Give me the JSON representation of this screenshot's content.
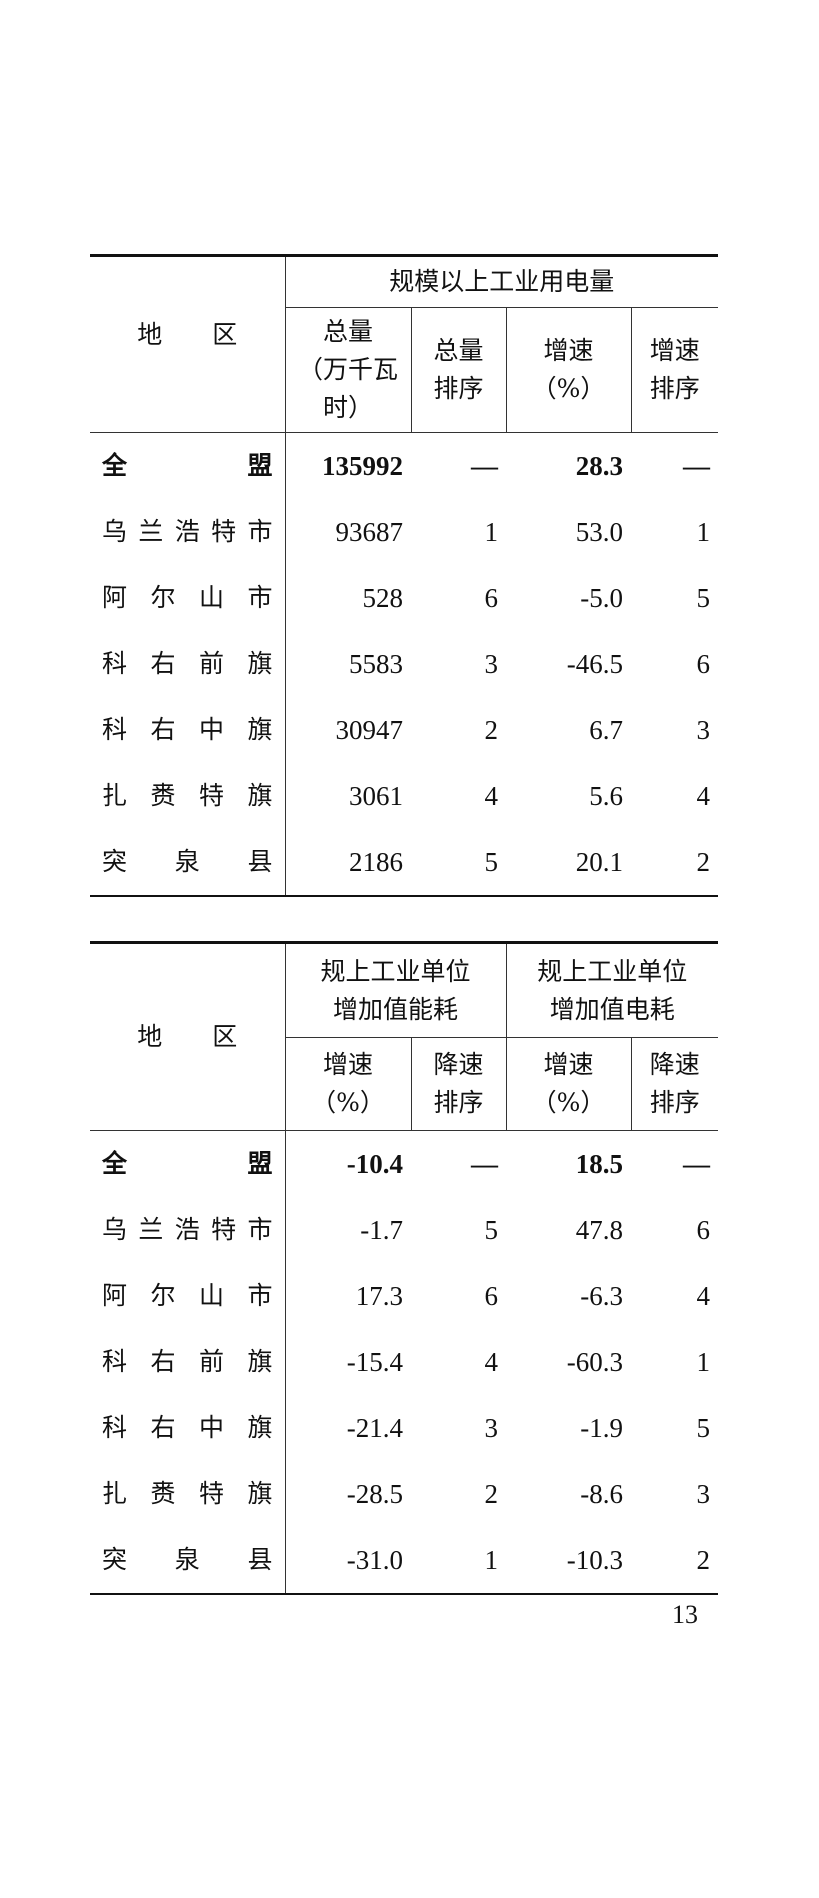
{
  "table1": {
    "region_header": "地　　区",
    "group_header": "规模以上工业用电量",
    "columns": [
      [
        "总量",
        "（万千瓦时）"
      ],
      [
        "总量",
        "排序"
      ],
      [
        "增速",
        "（%）"
      ],
      [
        "增速",
        "排序"
      ]
    ],
    "rows": [
      {
        "region": "全盟",
        "values": [
          "135992",
          "—",
          "28.3",
          "—"
        ]
      },
      {
        "region": "乌兰浩特市",
        "values": [
          "93687",
          "1",
          "53.0",
          "1"
        ]
      },
      {
        "region": "阿尔山市",
        "values": [
          "528",
          "6",
          "-5.0",
          "5"
        ]
      },
      {
        "region": "科右前旗",
        "values": [
          "5583",
          "3",
          "-46.5",
          "6"
        ]
      },
      {
        "region": "科右中旗",
        "values": [
          "30947",
          "2",
          "6.7",
          "3"
        ]
      },
      {
        "region": "扎赉特旗",
        "values": [
          "3061",
          "4",
          "5.6",
          "4"
        ]
      },
      {
        "region": "突泉县",
        "values": [
          "2186",
          "5",
          "20.1",
          "2"
        ]
      }
    ]
  },
  "table2": {
    "region_header": "地　　区",
    "group_headers": [
      [
        "规上工业单位",
        "增加值能耗"
      ],
      [
        "规上工业单位",
        "增加值电耗"
      ]
    ],
    "columns": [
      [
        "增速",
        "（%）"
      ],
      [
        "降速",
        "排序"
      ],
      [
        "增速",
        "（%）"
      ],
      [
        "降速",
        "排序"
      ]
    ],
    "rows": [
      {
        "region": "全盟",
        "values": [
          "-10.4",
          "—",
          "18.5",
          "—"
        ]
      },
      {
        "region": "乌兰浩特市",
        "values": [
          "-1.7",
          "5",
          "47.8",
          "6"
        ]
      },
      {
        "region": "阿尔山市",
        "values": [
          "17.3",
          "6",
          "-6.3",
          "4"
        ]
      },
      {
        "region": "科右前旗",
        "values": [
          "-15.4",
          "4",
          "-60.3",
          "1"
        ]
      },
      {
        "region": "科右中旗",
        "values": [
          "-21.4",
          "3",
          "-1.9",
          "5"
        ]
      },
      {
        "region": "扎赉特旗",
        "values": [
          "-28.5",
          "2",
          "-8.6",
          "3"
        ]
      },
      {
        "region": "突泉县",
        "values": [
          "-31.0",
          "1",
          "-10.3",
          "2"
        ]
      }
    ]
  },
  "page_number": "13"
}
